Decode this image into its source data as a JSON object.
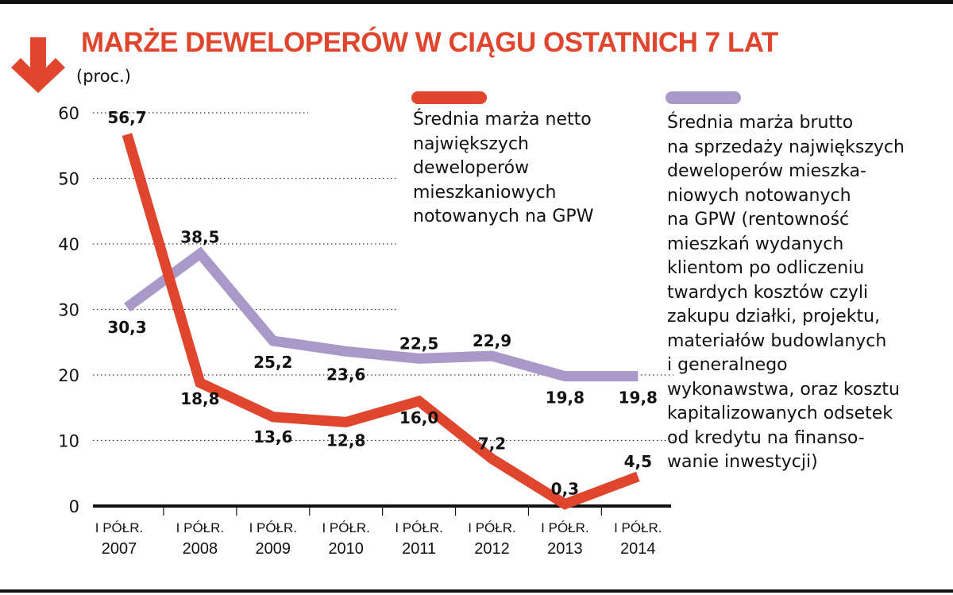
{
  "chart_data": {
    "type": "line",
    "title": "MARŻE DEWELOPERÓW W CIĄGU OSTATNICH 7 LAT",
    "ylabel": "(proc.)",
    "ylim": [
      0,
      60
    ],
    "yticks": [
      "0",
      "10",
      "20",
      "30",
      "40",
      "50",
      "60"
    ],
    "grid": true,
    "categories": [
      [
        "I PÓŁR.",
        "2007"
      ],
      [
        "I PÓŁR.",
        "2008"
      ],
      [
        "I PÓŁR.",
        "2009"
      ],
      [
        "I PÓŁR.",
        "2010"
      ],
      [
        "I PÓŁR.",
        "2011"
      ],
      [
        "I PÓŁR.",
        "2012"
      ],
      [
        "I PÓŁR.",
        "2013"
      ],
      [
        "I PÓŁR.",
        "2014"
      ]
    ],
    "series": [
      {
        "name": "Średnia marża netto\nnajwiększych\ndeweloperów\nmieszkaniowych\nnotowanych na GPW",
        "color": "#e0452d",
        "values": [
          56.7,
          18.8,
          13.6,
          12.8,
          16.0,
          7.2,
          0.3,
          4.5
        ],
        "labels": [
          "56,7",
          "18,8",
          "13,6",
          "12,8",
          "16,0",
          "7,2",
          "0,3",
          "4,5"
        ]
      },
      {
        "name": "Średnia marża brutto\nna sprzedaży największych\ndeweloperów mieszka-\nniowych notowanych\nna GPW (rentowność\nmieszkań wydanych\nklientom po odliczeniu\ntwardych kosztów czyli\nzakupu działki, projektu,\nmateriałów budowlanych\ni generalnego\nwykonawstwa, oraz kosztu\nkapitalizowanych odsetek\nod kredytu na finanso-\nwanie inwestycji)",
        "color": "#a899c9",
        "values": [
          30.3,
          38.5,
          25.2,
          23.6,
          22.5,
          22.9,
          19.8,
          19.8
        ],
        "labels": [
          "30,3",
          "38,5",
          "25,2",
          "23,6",
          "22,5",
          "22,9",
          "19,8",
          "19,8"
        ]
      }
    ],
    "legend": "top-right"
  },
  "icons": {
    "title_arrow": "arrow-down-icon",
    "arrow_color": "#e0452d"
  }
}
